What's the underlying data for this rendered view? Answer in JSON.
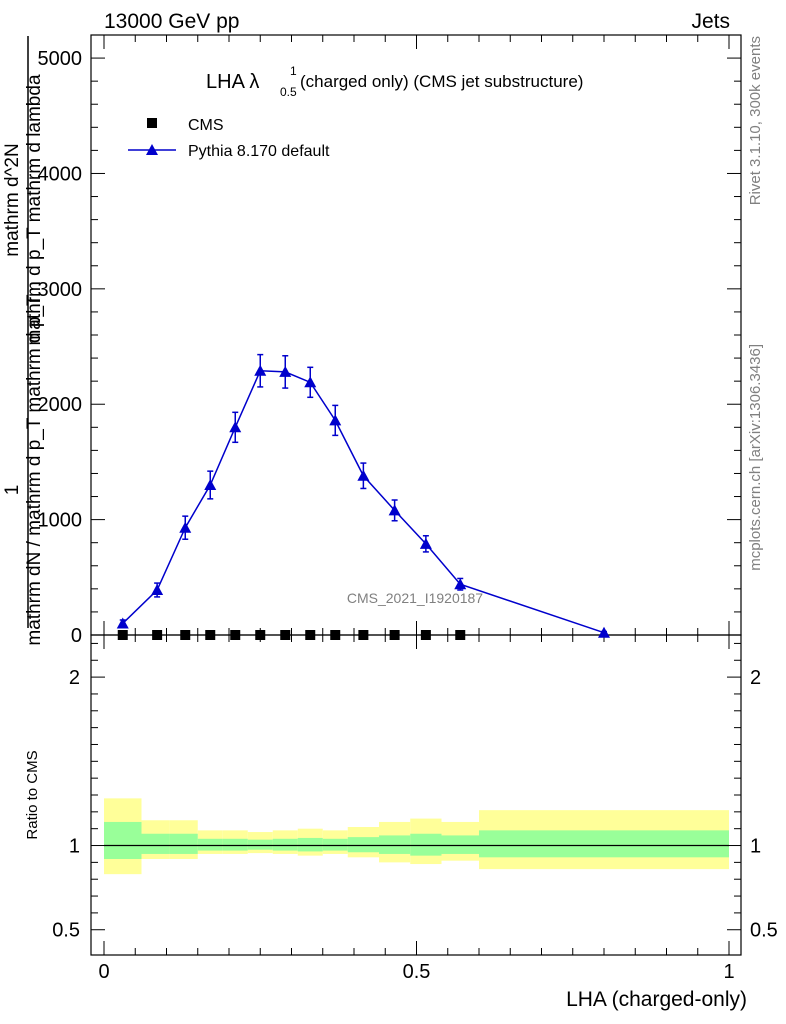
{
  "header": {
    "left": "13000 GeV pp",
    "right": "Jets"
  },
  "side_text": {
    "top": "Rivet 3.1.10,  300k events",
    "bottom": "mcplots.cern.ch [arXiv:1306.3436]"
  },
  "watermark": "CMS_2021_I1920187",
  "ratio_ylabel": "Ratio to CMS",
  "colors": {
    "mc": "#0000cc",
    "band_inner": "#99ff99",
    "band_outer": "#ffff99"
  },
  "chart_data": {
    "type": "line",
    "title_parts": {
      "main": "LHA λ",
      "sup": "1",
      "sub": "0.5",
      "rest": "(charged only) (CMS jet substructure)"
    },
    "xlabel": "LHA (charged-only)",
    "ylabel": {
      "numerator": "1",
      "denominator": "mathrm dN / mathrm d p_T mathrm d p_T",
      "numerator2": "mathrm d^2N",
      "denominator2": "mathrm d p_T mathrm d lambda"
    },
    "xlim": [
      0,
      1
    ],
    "ylim": [
      0,
      5200
    ],
    "yticks": [
      0,
      1000,
      2000,
      3000,
      4000,
      5000
    ],
    "ytick_labels": [
      "0",
      "1000",
      "2000",
      "3000",
      "4000",
      "5000"
    ],
    "xticks": [
      0,
      0.5,
      1
    ],
    "xtick_labels": [
      "0",
      "0.5",
      "1"
    ],
    "legend": [
      "CMS",
      "Pythia 8.170 default"
    ],
    "legend_position": "top-left",
    "series": [
      {
        "name": "CMS",
        "marker": "square",
        "x": [
          0.03,
          0.085,
          0.13,
          0.17,
          0.21,
          0.25,
          0.29,
          0.33,
          0.37,
          0.415,
          0.465,
          0.515,
          0.57
        ],
        "y": [
          0,
          0,
          0,
          0,
          0,
          0,
          0,
          0,
          0,
          0,
          0,
          0,
          0
        ]
      },
      {
        "name": "Pythia 8.170 default",
        "marker": "triangle",
        "x": [
          0.03,
          0.085,
          0.13,
          0.17,
          0.21,
          0.25,
          0.29,
          0.33,
          0.37,
          0.415,
          0.465,
          0.515,
          0.57,
          0.8
        ],
        "y": [
          100,
          390,
          930,
          1300,
          1800,
          2290,
          2280,
          2190,
          1860,
          1380,
          1080,
          790,
          440,
          20
        ],
        "yerr": [
          30,
          60,
          100,
          120,
          130,
          140,
          140,
          130,
          130,
          110,
          90,
          70,
          50,
          10
        ]
      }
    ],
    "ratio": {
      "ylim": [
        0.35,
        2.25
      ],
      "yticks": [
        0.5,
        1,
        2
      ],
      "ytick_labels": [
        "0.5",
        "1",
        "2"
      ],
      "bins": [
        {
          "x0": 0.0,
          "x1": 0.06,
          "inner": [
            0.92,
            1.14
          ],
          "outer": [
            0.83,
            1.28
          ]
        },
        {
          "x0": 0.06,
          "x1": 0.105,
          "inner": [
            0.95,
            1.07
          ],
          "outer": [
            0.92,
            1.15
          ]
        },
        {
          "x0": 0.105,
          "x1": 0.15,
          "inner": [
            0.95,
            1.07
          ],
          "outer": [
            0.92,
            1.15
          ]
        },
        {
          "x0": 0.15,
          "x1": 0.19,
          "inner": [
            0.97,
            1.04
          ],
          "outer": [
            0.95,
            1.09
          ]
        },
        {
          "x0": 0.19,
          "x1": 0.23,
          "inner": [
            0.97,
            1.04
          ],
          "outer": [
            0.95,
            1.09
          ]
        },
        {
          "x0": 0.23,
          "x1": 0.27,
          "inner": [
            0.975,
            1.035
          ],
          "outer": [
            0.955,
            1.08
          ]
        },
        {
          "x0": 0.27,
          "x1": 0.31,
          "inner": [
            0.97,
            1.04
          ],
          "outer": [
            0.95,
            1.09
          ]
        },
        {
          "x0": 0.31,
          "x1": 0.35,
          "inner": [
            0.965,
            1.045
          ],
          "outer": [
            0.94,
            1.1
          ]
        },
        {
          "x0": 0.35,
          "x1": 0.39,
          "inner": [
            0.97,
            1.04
          ],
          "outer": [
            0.95,
            1.09
          ]
        },
        {
          "x0": 0.39,
          "x1": 0.44,
          "inner": [
            0.96,
            1.05
          ],
          "outer": [
            0.93,
            1.11
          ]
        },
        {
          "x0": 0.44,
          "x1": 0.49,
          "inner": [
            0.95,
            1.06
          ],
          "outer": [
            0.9,
            1.14
          ]
        },
        {
          "x0": 0.49,
          "x1": 0.54,
          "inner": [
            0.94,
            1.07
          ],
          "outer": [
            0.89,
            1.16
          ]
        },
        {
          "x0": 0.54,
          "x1": 0.6,
          "inner": [
            0.95,
            1.06
          ],
          "outer": [
            0.91,
            1.14
          ]
        },
        {
          "x0": 0.6,
          "x1": 1.0,
          "inner": [
            0.93,
            1.09
          ],
          "outer": [
            0.86,
            1.21
          ]
        }
      ]
    }
  }
}
